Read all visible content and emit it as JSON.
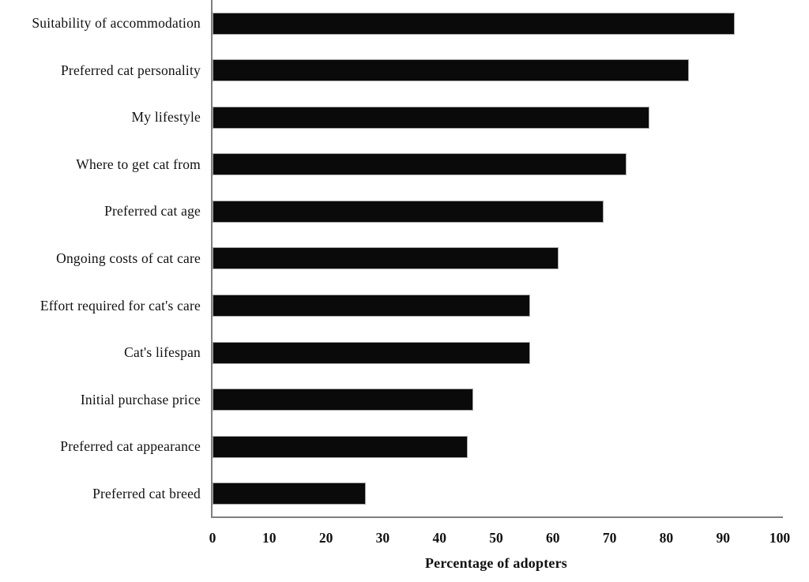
{
  "figure": {
    "background": "#ffffff",
    "bar_color": "#0a0a0a",
    "bar_border_color": "#a8a8a8",
    "axis_line_color": "#7f7f7f",
    "text_color": "#111111"
  },
  "chart_data": {
    "type": "bar",
    "orientation": "horizontal",
    "title": "",
    "xlabel": "Percentage of adopters",
    "ylabel": "",
    "xlim": [
      0,
      100
    ],
    "xticks": [
      0,
      10,
      20,
      30,
      40,
      50,
      60,
      70,
      80,
      90,
      100
    ],
    "grid": false,
    "legend": false,
    "categories": [
      "Suitability of accommodation",
      "Preferred cat personality",
      "My lifestyle",
      "Where to get cat from",
      "Preferred cat age",
      "Ongoing costs of cat care",
      "Effort required for cat's care",
      "Cat's lifespan",
      "Initial purchase price",
      "Preferred cat appearance",
      "Preferred cat breed"
    ],
    "values": [
      92,
      84,
      77,
      73,
      69,
      61,
      56,
      56,
      46,
      45,
      27
    ]
  }
}
